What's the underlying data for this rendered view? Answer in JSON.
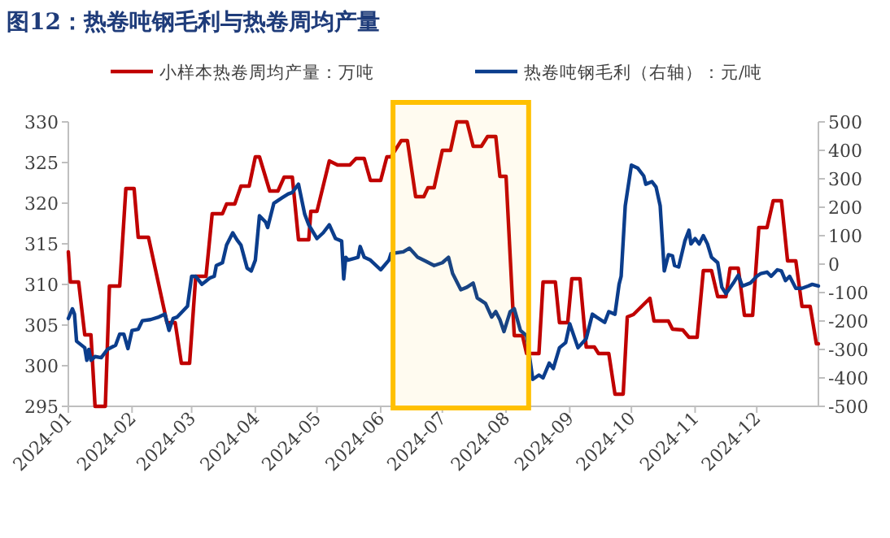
{
  "chart_data": {
    "type": "line",
    "title": "图12：热卷吨钢毛利与热卷周均产量",
    "xlim": [
      "2024-01-01",
      "2024-12-31"
    ],
    "xticks": [
      {
        "value": "2024-01-01",
        "label": "2024-01"
      },
      {
        "value": "2024-02-01",
        "label": "2024-02"
      },
      {
        "value": "2024-03-01",
        "label": "2024-03"
      },
      {
        "value": "2024-04-01",
        "label": "2024-04"
      },
      {
        "value": "2024-05-01",
        "label": "2024-05"
      },
      {
        "value": "2024-06-01",
        "label": "2024-06"
      },
      {
        "value": "2024-07-01",
        "label": "2024-07"
      },
      {
        "value": "2024-08-01",
        "label": "2024-08"
      },
      {
        "value": "2024-09-01",
        "label": "2024-09"
      },
      {
        "value": "2024-10-01",
        "label": "2024-10"
      },
      {
        "value": "2024-11-01",
        "label": "2024-11"
      },
      {
        "value": "2024-12-01",
        "label": "2024-12"
      }
    ],
    "ylim": [
      295,
      330
    ],
    "yticks": [
      295,
      300,
      305,
      310,
      315,
      320,
      325,
      330
    ],
    "y2lim": [
      -500,
      500
    ],
    "y2ticks": [
      -500,
      -400,
      -300,
      -200,
      -100,
      0,
      100,
      200,
      300,
      400,
      500
    ],
    "legend": "top",
    "grid": false,
    "line_style": "solid",
    "bands": [
      {
        "axis": "x",
        "from": "2024-06-07",
        "to": "2024-08-12",
        "color": "#ffc000"
      }
    ],
    "series": [
      {
        "name": "小样本热卷周均产量：万吨",
        "color": "#c00000",
        "x": [
          "2024-01-01",
          "2024-01-02",
          "2024-01-06",
          "2024-01-09",
          "2024-01-12",
          "2024-01-14",
          "2024-01-19",
          "2024-01-21",
          "2024-01-26",
          "2024-01-29",
          "2024-02-02",
          "2024-02-04",
          "2024-02-09",
          "2024-02-18",
          "2024-02-22",
          "2024-02-25",
          "2024-02-29",
          "2024-03-03",
          "2024-03-08",
          "2024-03-11",
          "2024-03-16",
          "2024-03-18",
          "2024-03-22",
          "2024-03-25",
          "2024-03-29",
          "2024-04-01",
          "2024-04-03",
          "2024-04-08",
          "2024-04-12",
          "2024-04-15",
          "2024-04-19",
          "2024-04-22",
          "2024-04-27",
          "2024-04-28",
          "2024-05-01",
          "2024-05-07",
          "2024-05-11",
          "2024-05-17",
          "2024-05-20",
          "2024-05-24",
          "2024-05-27",
          "2024-06-01",
          "2024-06-04",
          "2024-06-06",
          "2024-06-11",
          "2024-06-14",
          "2024-06-18",
          "2024-06-22",
          "2024-06-24",
          "2024-06-27",
          "2024-07-01",
          "2024-07-05",
          "2024-07-08",
          "2024-07-13",
          "2024-07-16",
          "2024-07-20",
          "2024-07-23",
          "2024-07-27",
          "2024-07-29",
          "2024-08-01",
          "2024-08-05",
          "2024-08-09",
          "2024-08-11",
          "2024-08-17",
          "2024-08-19",
          "2024-08-25",
          "2024-08-27",
          "2024-08-31",
          "2024-09-02",
          "2024-09-06",
          "2024-09-09",
          "2024-09-13",
          "2024-09-15",
          "2024-09-20",
          "2024-09-23",
          "2024-09-27",
          "2024-09-29",
          "2024-10-02",
          "2024-10-10",
          "2024-10-12",
          "2024-10-19",
          "2024-10-21",
          "2024-10-26",
          "2024-10-29",
          "2024-11-02",
          "2024-11-05",
          "2024-11-09",
          "2024-11-12",
          "2024-11-16",
          "2024-11-18",
          "2024-11-22",
          "2024-11-25",
          "2024-11-29",
          "2024-12-02",
          "2024-12-06",
          "2024-12-09",
          "2024-12-13",
          "2024-12-16",
          "2024-12-20",
          "2024-12-23",
          "2024-12-27",
          "2024-12-30",
          "2024-12-31"
        ],
        "values": [
          314,
          310.3,
          310.3,
          303.8,
          303.8,
          295,
          295,
          309.8,
          309.8,
          321.8,
          321.8,
          315.8,
          315.8,
          305.3,
          305.3,
          300.3,
          300.3,
          311,
          311,
          318.7,
          318.7,
          319.9,
          319.9,
          322.1,
          322.1,
          325.7,
          325.7,
          321.5,
          321.5,
          323.2,
          323.2,
          315.5,
          315.5,
          319,
          319,
          325.2,
          324.7,
          324.7,
          325.5,
          325.5,
          322.8,
          322.8,
          325.7,
          325.7,
          327.7,
          327.7,
          320.8,
          320.8,
          321.9,
          321.9,
          326.5,
          326.5,
          330,
          330,
          327,
          327,
          328.2,
          328.2,
          323.3,
          323.3,
          303.7,
          303.7,
          301.5,
          301.5,
          310.3,
          310.3,
          305.3,
          305.3,
          310.7,
          310.7,
          302.3,
          302.3,
          301.5,
          301.5,
          296.5,
          296.5,
          306,
          306.3,
          308.3,
          305.5,
          305.5,
          304.5,
          304.4,
          303.5,
          303.5,
          311.7,
          311.7,
          308.5,
          308.5,
          312,
          312,
          306.2,
          306.2,
          317,
          317,
          320.3,
          320.3,
          312.9,
          312.9,
          307.3,
          307.3,
          302.7,
          302.7
        ]
      },
      {
        "name": "热卷吨钢毛利（右轴）：元/吨",
        "color": "#0b3d8c",
        "axis": "y2",
        "x": [
          "2024-01-01",
          "2024-01-03",
          "2024-01-04",
          "2024-01-05",
          "2024-01-09",
          "2024-01-10",
          "2024-01-11",
          "2024-01-12",
          "2024-01-14",
          "2024-01-17",
          "2024-01-20",
          "2024-01-24",
          "2024-01-26",
          "2024-01-28",
          "2024-01-30",
          "2024-02-01",
          "2024-02-04",
          "2024-02-06",
          "2024-02-10",
          "2024-02-14",
          "2024-02-17",
          "2024-02-19",
          "2024-02-21",
          "2024-02-23",
          "2024-02-28",
          "2024-03-01",
          "2024-03-03",
          "2024-03-06",
          "2024-03-10",
          "2024-03-12",
          "2024-03-13",
          "2024-03-16",
          "2024-03-18",
          "2024-03-21",
          "2024-03-23",
          "2024-03-25",
          "2024-03-28",
          "2024-03-30",
          "2024-04-01",
          "2024-04-03",
          "2024-04-06",
          "2024-04-07",
          "2024-04-10",
          "2024-04-14",
          "2024-04-17",
          "2024-04-19",
          "2024-04-22",
          "2024-04-25",
          "2024-04-27",
          "2024-05-01",
          "2024-05-04",
          "2024-05-07",
          "2024-05-10",
          "2024-05-13",
          "2024-05-14",
          "2024-05-15",
          "2024-05-16",
          "2024-05-21",
          "2024-05-22",
          "2024-05-24",
          "2024-05-27",
          "2024-06-01",
          "2024-06-05",
          "2024-06-06",
          "2024-06-12",
          "2024-06-15",
          "2024-06-19",
          "2024-06-23",
          "2024-06-27",
          "2024-07-01",
          "2024-07-04",
          "2024-07-06",
          "2024-07-10",
          "2024-07-13",
          "2024-07-16",
          "2024-07-18",
          "2024-07-22",
          "2024-07-25",
          "2024-07-27",
          "2024-07-29",
          "2024-07-31",
          "2024-08-03",
          "2024-08-05",
          "2024-08-08",
          "2024-08-11",
          "2024-08-14",
          "2024-08-17",
          "2024-08-19",
          "2024-08-22",
          "2024-08-24",
          "2024-08-27",
          "2024-08-30",
          "2024-09-01",
          "2024-09-05",
          "2024-09-09",
          "2024-09-12",
          "2024-09-14",
          "2024-09-18",
          "2024-09-20",
          "2024-09-23",
          "2024-09-25",
          "2024-09-26",
          "2024-09-28",
          "2024-10-01",
          "2024-10-04",
          "2024-10-07",
          "2024-10-08",
          "2024-10-11",
          "2024-10-13",
          "2024-10-15",
          "2024-10-17",
          "2024-10-19",
          "2024-10-21",
          "2024-10-22",
          "2024-10-24",
          "2024-10-27",
          "2024-10-29",
          "2024-10-30",
          "2024-11-01",
          "2024-11-03",
          "2024-11-05",
          "2024-11-07",
          "2024-11-09",
          "2024-11-12",
          "2024-11-14",
          "2024-11-16",
          "2024-11-20",
          "2024-11-22",
          "2024-11-24",
          "2024-11-28",
          "2024-12-01",
          "2024-12-03",
          "2024-12-06",
          "2024-12-08",
          "2024-12-11",
          "2024-12-13",
          "2024-12-15",
          "2024-12-17",
          "2024-12-20",
          "2024-12-23",
          "2024-12-26",
          "2024-12-28",
          "2024-12-31"
        ],
        "values": [
          -191,
          -157,
          -176,
          -271,
          -294,
          -338,
          -300,
          -338,
          -325,
          -329,
          -300,
          -285,
          -246,
          -246,
          -297,
          -233,
          -229,
          -199,
          -195,
          -186,
          -176,
          -233,
          -191,
          -186,
          -148,
          -43,
          -43,
          -71,
          -48,
          -43,
          -5,
          5,
          67,
          110,
          86,
          67,
          -14,
          -24,
          14,
          170,
          148,
          129,
          214,
          233,
          247,
          252,
          281,
          176,
          138,
          90,
          110,
          138,
          90,
          81,
          -52,
          24,
          14,
          24,
          62,
          24,
          14,
          -20,
          14,
          37,
          43,
          56,
          24,
          10,
          -5,
          5,
          24,
          -33,
          -90,
          -81,
          -67,
          -119,
          -138,
          -186,
          -167,
          -195,
          -237,
          -167,
          -157,
          -233,
          -252,
          -405,
          -390,
          -400,
          -348,
          -367,
          -294,
          -276,
          -210,
          -294,
          -262,
          -176,
          -186,
          -205,
          -167,
          -176,
          -71,
          -43,
          205,
          348,
          338,
          310,
          281,
          290,
          271,
          205,
          -24,
          33,
          29,
          -5,
          -10,
          81,
          119,
          71,
          90,
          71,
          100,
          71,
          24,
          5,
          -81,
          -104,
          -62,
          -39,
          -77,
          -66,
          -43,
          -33,
          -28,
          -43,
          -20,
          -24,
          -58,
          -43,
          -85,
          -85,
          -77,
          -71,
          -77
        ]
      }
    ]
  }
}
